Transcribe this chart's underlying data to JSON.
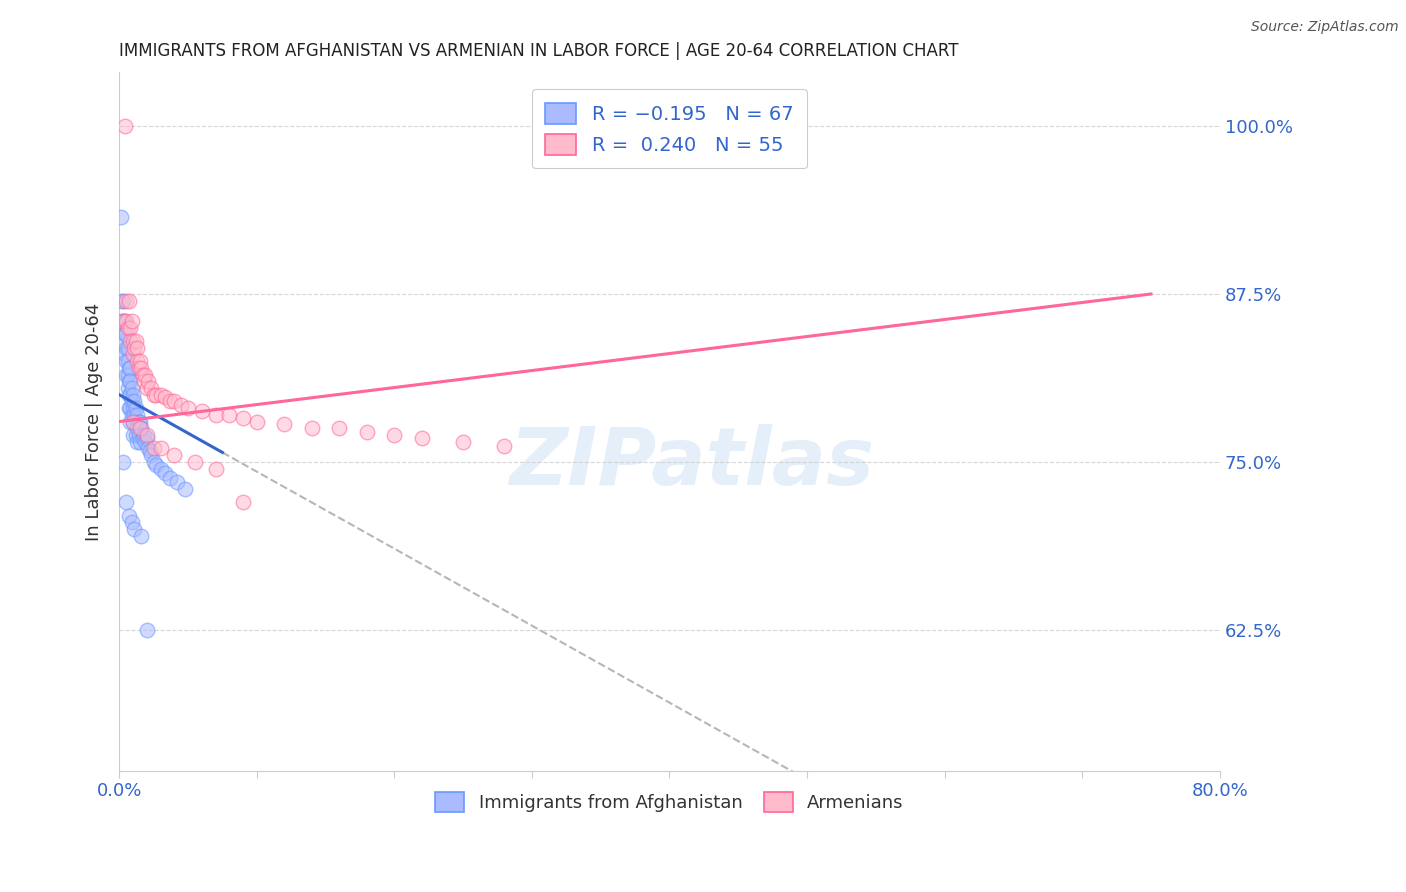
{
  "title": "IMMIGRANTS FROM AFGHANISTAN VS ARMENIAN IN LABOR FORCE | AGE 20-64 CORRELATION CHART",
  "source": "Source: ZipAtlas.com",
  "ylabel": "In Labor Force | Age 20-64",
  "ytick_labels": [
    "62.5%",
    "75.0%",
    "87.5%",
    "100.0%"
  ],
  "ytick_values": [
    0.625,
    0.75,
    0.875,
    1.0
  ],
  "xlim": [
    0.0,
    0.8
  ],
  "ylim": [
    0.52,
    1.04
  ],
  "afghanistan_color": "#6699ff",
  "armenian_color": "#ff6699",
  "afghanistan_R": -0.195,
  "afghanistan_N": 67,
  "armenian_R": 0.24,
  "armenian_N": 55,
  "afghanistan_label": "Immigrants from Afghanistan",
  "armenian_label": "Armenians",
  "afg_line_x0": 0.0,
  "afg_line_x1": 0.075,
  "afg_line_y0": 0.8,
  "afg_line_y1": 0.757,
  "arm_line_x0": 0.0,
  "arm_line_x1": 0.75,
  "arm_line_y0": 0.78,
  "arm_line_y1": 0.875,
  "dash_line_x0": 0.075,
  "dash_line_x1": 0.8,
  "watermark_text": "ZIPatlas",
  "background_color": "#ffffff",
  "grid_color": "#cccccc",
  "axis_label_color": "#3366cc",
  "title_color": "#222222",
  "afg_scatter_x": [
    0.001,
    0.002,
    0.002,
    0.003,
    0.003,
    0.003,
    0.004,
    0.004,
    0.004,
    0.005,
    0.005,
    0.005,
    0.005,
    0.006,
    0.006,
    0.006,
    0.006,
    0.007,
    0.007,
    0.007,
    0.007,
    0.008,
    0.008,
    0.008,
    0.008,
    0.008,
    0.009,
    0.009,
    0.009,
    0.01,
    0.01,
    0.01,
    0.01,
    0.011,
    0.011,
    0.012,
    0.012,
    0.012,
    0.013,
    0.013,
    0.013,
    0.014,
    0.014,
    0.015,
    0.015,
    0.016,
    0.017,
    0.018,
    0.019,
    0.02,
    0.021,
    0.022,
    0.023,
    0.025,
    0.027,
    0.03,
    0.033,
    0.037,
    0.042,
    0.048,
    0.003,
    0.005,
    0.007,
    0.009,
    0.011,
    0.016,
    0.02
  ],
  "afg_scatter_y": [
    0.932,
    0.87,
    0.855,
    0.87,
    0.855,
    0.84,
    0.855,
    0.845,
    0.83,
    0.845,
    0.835,
    0.825,
    0.815,
    0.835,
    0.825,
    0.815,
    0.805,
    0.82,
    0.81,
    0.8,
    0.79,
    0.82,
    0.81,
    0.8,
    0.79,
    0.78,
    0.805,
    0.795,
    0.785,
    0.8,
    0.79,
    0.78,
    0.77,
    0.795,
    0.785,
    0.79,
    0.78,
    0.77,
    0.785,
    0.775,
    0.765,
    0.78,
    0.77,
    0.78,
    0.765,
    0.775,
    0.768,
    0.77,
    0.765,
    0.768,
    0.76,
    0.758,
    0.755,
    0.75,
    0.748,
    0.745,
    0.742,
    0.738,
    0.735,
    0.73,
    0.75,
    0.72,
    0.71,
    0.705,
    0.7,
    0.695,
    0.625
  ],
  "arm_scatter_x": [
    0.003,
    0.005,
    0.005,
    0.006,
    0.007,
    0.008,
    0.008,
    0.009,
    0.01,
    0.01,
    0.011,
    0.012,
    0.013,
    0.013,
    0.014,
    0.015,
    0.016,
    0.017,
    0.018,
    0.019,
    0.02,
    0.021,
    0.023,
    0.025,
    0.027,
    0.03,
    0.033,
    0.037,
    0.04,
    0.045,
    0.05,
    0.06,
    0.07,
    0.08,
    0.09,
    0.1,
    0.12,
    0.14,
    0.16,
    0.18,
    0.2,
    0.22,
    0.25,
    0.28,
    0.01,
    0.015,
    0.02,
    0.025,
    0.03,
    0.04,
    0.055,
    0.07,
    0.09,
    0.35,
    0.004
  ],
  "arm_scatter_y": [
    0.855,
    0.87,
    0.855,
    0.85,
    0.87,
    0.85,
    0.84,
    0.855,
    0.84,
    0.83,
    0.835,
    0.84,
    0.835,
    0.825,
    0.82,
    0.825,
    0.82,
    0.815,
    0.81,
    0.815,
    0.805,
    0.81,
    0.805,
    0.8,
    0.8,
    0.8,
    0.798,
    0.795,
    0.795,
    0.792,
    0.79,
    0.788,
    0.785,
    0.785,
    0.783,
    0.78,
    0.778,
    0.775,
    0.775,
    0.772,
    0.77,
    0.768,
    0.765,
    0.762,
    0.78,
    0.775,
    0.77,
    0.76,
    0.76,
    0.755,
    0.75,
    0.745,
    0.72,
    1.0,
    1.0
  ]
}
